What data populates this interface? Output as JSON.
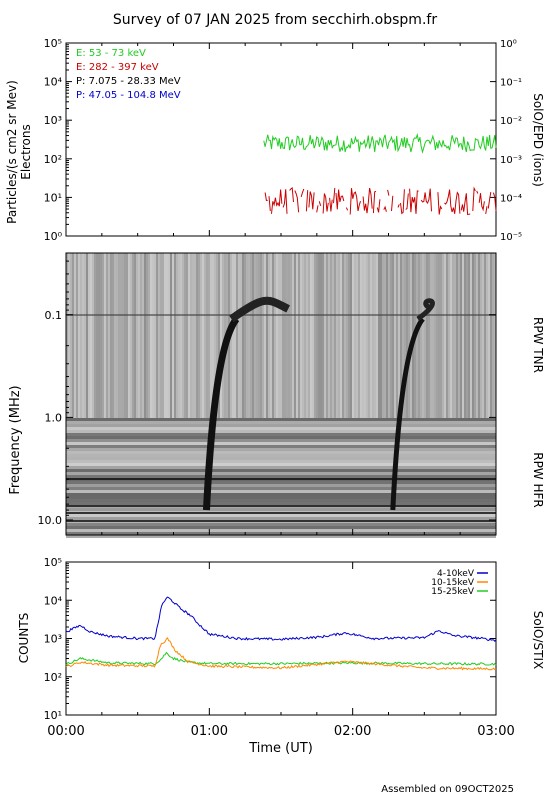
{
  "page": {
    "title": "Survey of 07 JAN 2025 from secchirh.obspm.fr",
    "footer": "Assembled on 09OCT2025"
  },
  "chart_data": [
    {
      "type": "line",
      "panel": "SolO/EPD",
      "ylabel": "Particles/(s cm2 sr Mev)",
      "ylabel2": "Electrons",
      "right_label": "SolO/EPD (ions)",
      "yscale": "log",
      "ylim": [
        1,
        100000
      ],
      "y_ticks": [
        "10⁰",
        "10¹",
        "10²",
        "10³",
        "10⁴",
        "10⁵"
      ],
      "y2scale": "log",
      "y2lim": [
        1e-05,
        1
      ],
      "y2_ticks": [
        "10⁻⁵",
        "10⁻⁴",
        "10⁻³",
        "10⁻²",
        "10⁻¹",
        "10⁰"
      ],
      "xlim_hours": [
        0,
        3
      ],
      "legend": [
        {
          "label": "E: 53 - 73 keV",
          "color": "#22cc22"
        },
        {
          "label": "E: 282 - 397 keV",
          "color": "#cc0000"
        },
        {
          "label": "P: 7.075 - 28.33 MeV",
          "color": "#000000"
        },
        {
          "label": "P: 47.05 - 104.8 MeV",
          "color": "#0000cc"
        }
      ],
      "series": [
        {
          "name": "E: 53 - 73 keV",
          "color": "#22cc22",
          "x_range_hours": [
            1.38,
            3.0
          ],
          "typical_value": 250
        },
        {
          "name": "E: 282 - 397 keV",
          "color": "#cc0000",
          "x_range_hours": [
            1.38,
            3.0
          ],
          "typical_value": 8
        }
      ]
    },
    {
      "type": "heatmap",
      "panel": "RPW TNR / RPW HFR",
      "ylabel": "Frequency (MHz)",
      "yscale": "log",
      "y_inverted": true,
      "ylim_mhz": [
        0.025,
        14
      ],
      "y_ticks": [
        "0.1",
        "1.0",
        "10.0"
      ],
      "right_labels": [
        "RPW TNR",
        "RPW HFR"
      ],
      "xlim_hours": [
        0,
        3
      ],
      "bursts": [
        {
          "start_hours": 0.98,
          "end_hours": 1.55,
          "freq_range_mhz": [
            0.04,
            8
          ]
        },
        {
          "start_hours": 2.28,
          "end_hours": 2.55,
          "freq_range_mhz": [
            0.04,
            8
          ]
        }
      ]
    },
    {
      "type": "line",
      "panel": "SolO/STIX",
      "ylabel": "COUNTS",
      "right_label": "SolO/STIX",
      "yscale": "log",
      "ylim": [
        10,
        100000
      ],
      "y_ticks": [
        "10¹",
        "10²",
        "10³",
        "10⁴",
        "10⁵"
      ],
      "xlabel": "Time (UT)",
      "xlim_hours": [
        0,
        3
      ],
      "x_ticks": [
        "00:00",
        "01:00",
        "02:00",
        "03:00"
      ],
      "legend": [
        {
          "label": "4-10keV",
          "color": "#0000cc"
        },
        {
          "label": "10-15keV",
          "color": "#ff8800"
        },
        {
          "label": "15-25keV",
          "color": "#22cc22"
        }
      ],
      "series": [
        {
          "name": "4-10keV",
          "color": "#0000cc",
          "x": [
            0.0,
            0.1,
            0.17,
            0.3,
            0.5,
            0.62,
            0.67,
            0.71,
            0.75,
            0.8,
            0.87,
            0.92,
            1.0,
            1.2,
            1.5,
            1.78,
            1.95,
            2.15,
            2.5,
            2.6,
            2.7,
            2.9,
            3.0
          ],
          "y": [
            1500,
            2200,
            1500,
            1150,
            1000,
            1000,
            8000,
            12000,
            9000,
            6000,
            4000,
            2500,
            1300,
            1000,
            950,
            1100,
            1400,
            1000,
            1050,
            1600,
            1200,
            1000,
            900
          ]
        },
        {
          "name": "10-15keV",
          "color": "#ff8800",
          "x": [
            0.0,
            0.1,
            0.3,
            0.62,
            0.66,
            0.71,
            0.76,
            0.85,
            1.0,
            1.5,
            1.95,
            2.5,
            3.0
          ],
          "y": [
            180,
            240,
            200,
            190,
            700,
            1000,
            500,
            250,
            190,
            170,
            250,
            170,
            160
          ]
        },
        {
          "name": "15-25keV",
          "color": "#22cc22",
          "x": [
            0.0,
            0.1,
            0.3,
            0.62,
            0.66,
            0.7,
            0.75,
            0.85,
            1.0,
            1.5,
            2.0,
            2.5,
            3.0
          ],
          "y": [
            210,
            300,
            230,
            220,
            280,
            420,
            300,
            240,
            220,
            220,
            230,
            220,
            215
          ]
        }
      ]
    }
  ]
}
